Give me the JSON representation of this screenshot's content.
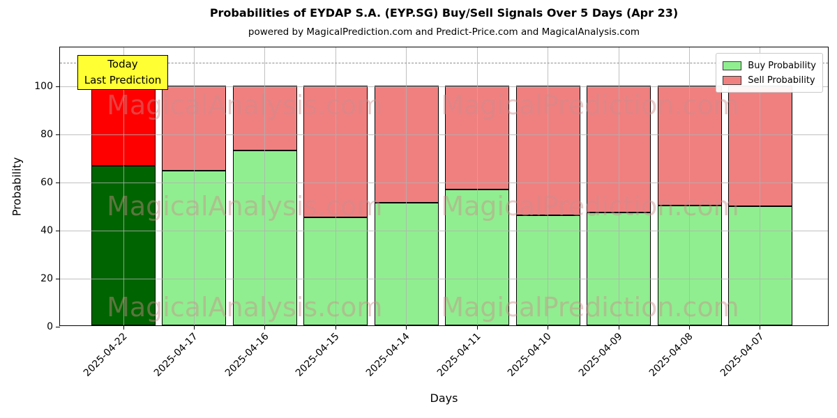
{
  "title": "Probabilities of EYDAP S.A. (EYP.SG) Buy/Sell Signals Over 5 Days (Apr 23)",
  "subtitle": "powered by MagicalPrediction.com and Predict-Price.com and MagicalAnalysis.com",
  "axes": {
    "ylabel": "Probability",
    "xlabel": "Days",
    "yticks": [
      0,
      20,
      40,
      60,
      80,
      100
    ],
    "grid_color": "#b0b0b0",
    "dashed_line_y": 110,
    "dashed_line_color": "#8c8c8c"
  },
  "annotation": {
    "line1": "Today",
    "line2": "Last Prediction",
    "bg_color": "#ffff33"
  },
  "legend": {
    "items": [
      {
        "label": "Buy Probability",
        "color": "#90ee90"
      },
      {
        "label": "Sell Probability",
        "color": "#f08080"
      }
    ]
  },
  "watermark": {
    "left_text": "MagicalAnalysis.com",
    "right_text": "MagicalPrediction.com",
    "color": "rgba(205,140,140,0.45)"
  },
  "chart_data": {
    "type": "bar",
    "stacked": true,
    "title": "Probabilities of EYDAP S.A. (EYP.SG) Buy/Sell Signals Over 5 Days (Apr 23)",
    "xlabel": "Days",
    "ylabel": "Probability",
    "categories": [
      "2025-04-22",
      "2025-04-17",
      "2025-04-16",
      "2025-04-15",
      "2025-04-14",
      "2025-04-11",
      "2025-04-10",
      "2025-04-09",
      "2025-04-08",
      "2025-04-07"
    ],
    "series": [
      {
        "name": "Buy Probability",
        "values": [
          66.5,
          64.5,
          73,
          45,
          51,
          56.5,
          46,
          47,
          50,
          49.5
        ],
        "color": "#90ee90",
        "today_color": "#006400"
      },
      {
        "name": "Sell Probability",
        "values": [
          33.5,
          35.5,
          27,
          55,
          49,
          43.5,
          54,
          53,
          50,
          50.5
        ],
        "color": "#f08080",
        "today_color": "#ff0000"
      }
    ],
    "today_index": 0,
    "bar_edge_color": "#000000",
    "ylim": [
      0,
      116.4
    ],
    "grid": true,
    "legend_position": "upper right",
    "dashed_reference_line": 110
  }
}
